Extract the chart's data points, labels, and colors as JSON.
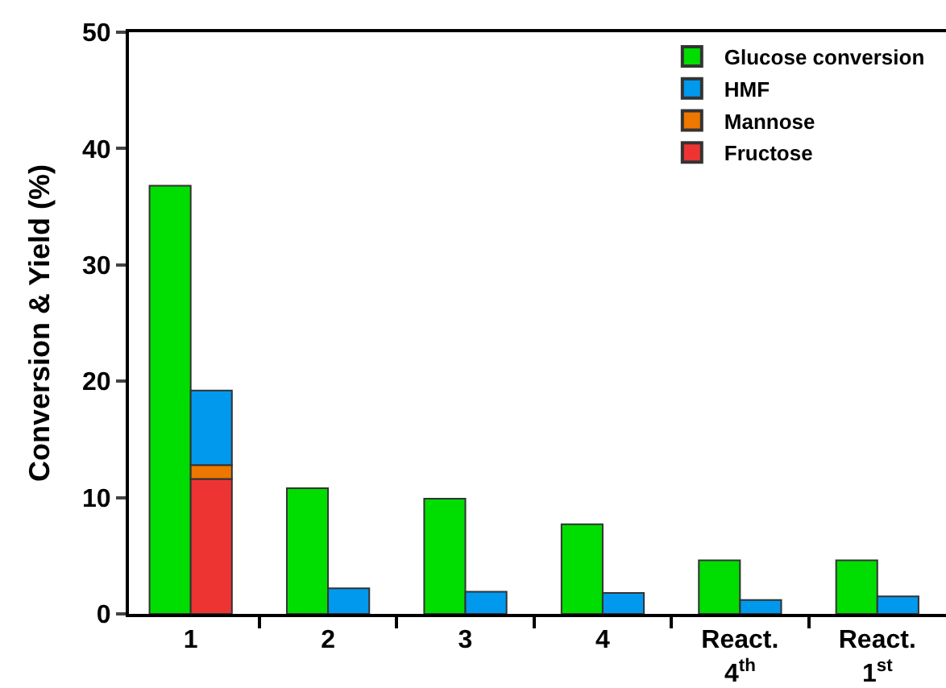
{
  "chart_data": {
    "type": "bar",
    "ylabel": "Conversion & Yield (%)",
    "categories": [
      "1",
      "2",
      "3",
      "4",
      "React.\n4$^{th}$",
      "React.\n1$^{st}$"
    ],
    "series": [
      {
        "name": "Glucose conversion",
        "color": "#00dd00",
        "values": [
          36.8,
          10.8,
          9.9,
          7.7,
          4.6,
          4.6
        ]
      },
      {
        "name": "Fructose",
        "color": "#ee3333",
        "values": [
          11.6,
          null,
          null,
          null,
          null,
          null
        ],
        "base": [
          0,
          null,
          null,
          null,
          null,
          null
        ]
      },
      {
        "name": "Mannose",
        "color": "#ee7700",
        "values": [
          1.2,
          null,
          null,
          null,
          null,
          null
        ],
        "base": [
          11.6,
          null,
          null,
          null,
          null,
          null
        ]
      },
      {
        "name": "HMF",
        "color": "#0099ee",
        "values": [
          6.4,
          2.2,
          1.9,
          1.8,
          1.2,
          1.5
        ],
        "base": [
          12.8,
          0,
          0,
          0,
          0,
          0
        ]
      }
    ],
    "ylim": [
      0,
      50
    ],
    "yticks": [
      0,
      10,
      20,
      30,
      40,
      50
    ],
    "legend": "top right"
  }
}
